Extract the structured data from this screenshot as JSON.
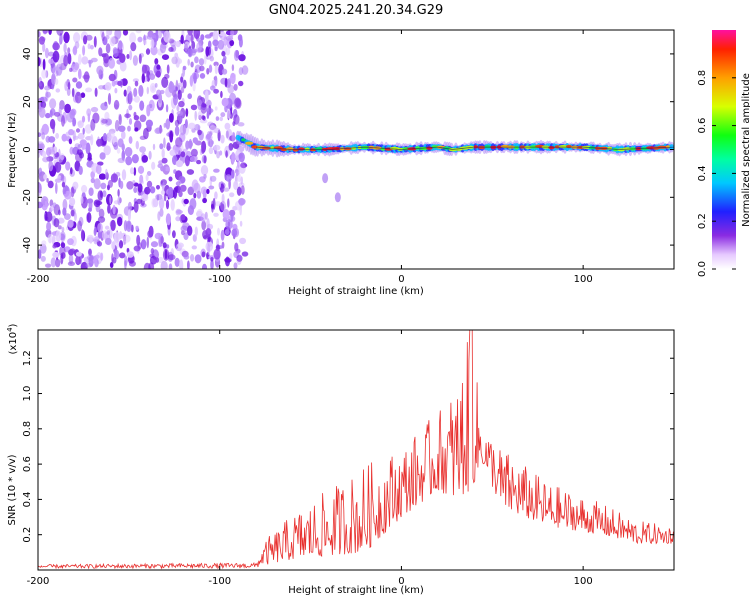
{
  "title": "GN04.2025.241.20.34.G29",
  "chart_data": [
    {
      "type": "heatmap",
      "xlabel": "Height of straight line (km)",
      "ylabel": "Frequency (Hz)",
      "xlim": [
        -200,
        150
      ],
      "ylim": [
        -50,
        50
      ],
      "xticks": [
        -200,
        -100,
        0,
        100
      ],
      "yticks": [
        -40,
        -20,
        0,
        20,
        40
      ],
      "colorbar": {
        "label": "Normalized spectral amplitude",
        "range": [
          0,
          1
        ],
        "ticks": [
          "0.0",
          "0.2",
          "0.4",
          "0.6",
          "0.8"
        ]
      },
      "noise_region_x": [
        -200,
        -86
      ],
      "ridge": [
        {
          "x": -90,
          "y": 5
        },
        {
          "x": -80,
          "y": 1
        },
        {
          "x": -60,
          "y": 0
        },
        {
          "x": -40,
          "y": 0
        },
        {
          "x": -20,
          "y": 1
        },
        {
          "x": 0,
          "y": 0
        },
        {
          "x": 20,
          "y": 1
        },
        {
          "x": 28,
          "y": 0
        },
        {
          "x": 40,
          "y": 1
        },
        {
          "x": 60,
          "y": 1
        },
        {
          "x": 80,
          "y": 1
        },
        {
          "x": 100,
          "y": 1
        },
        {
          "x": 120,
          "y": 0
        },
        {
          "x": 150,
          "y": 1
        }
      ],
      "stray_blobs": [
        {
          "x": -35,
          "y": -20
        },
        {
          "x": -42,
          "y": -12
        }
      ]
    },
    {
      "type": "line",
      "xlabel": "Height of straight line (km)",
      "ylabel": "SNR (10 * v/v)",
      "y_multiplier": "(x10",
      "y_multiplier_exp": "4",
      "xlim": [
        -200,
        150
      ],
      "ylim": [
        0,
        1.36
      ],
      "xticks": [
        -200,
        -100,
        0,
        100
      ],
      "yticks": [
        "0.2",
        "0.4",
        "0.6",
        "0.8",
        "1.0",
        "1.2"
      ],
      "series": [
        {
          "name": "SNR",
          "color": "#e8302e",
          "envelope": [
            {
              "x": -200,
              "lo": 0.01,
              "hi": 0.03
            },
            {
              "x": -80,
              "lo": 0.01,
              "hi": 0.04
            },
            {
              "x": -74,
              "lo": 0.03,
              "hi": 0.18
            },
            {
              "x": -60,
              "lo": 0.06,
              "hi": 0.32
            },
            {
              "x": -40,
              "lo": 0.08,
              "hi": 0.46
            },
            {
              "x": -20,
              "lo": 0.1,
              "hi": 0.6
            },
            {
              "x": 0,
              "lo": 0.3,
              "hi": 0.7
            },
            {
              "x": 20,
              "lo": 0.45,
              "hi": 0.9
            },
            {
              "x": 30,
              "lo": 0.4,
              "hi": 1.05
            },
            {
              "x": 38,
              "lo": 0.45,
              "hi": 1.36
            },
            {
              "x": 45,
              "lo": 0.6,
              "hi": 0.82
            },
            {
              "x": 55,
              "lo": 0.35,
              "hi": 0.7
            },
            {
              "x": 80,
              "lo": 0.25,
              "hi": 0.5
            },
            {
              "x": 110,
              "lo": 0.2,
              "hi": 0.38
            },
            {
              "x": 130,
              "lo": 0.15,
              "hi": 0.28
            },
            {
              "x": 150,
              "lo": 0.15,
              "hi": 0.25
            }
          ]
        }
      ]
    }
  ]
}
